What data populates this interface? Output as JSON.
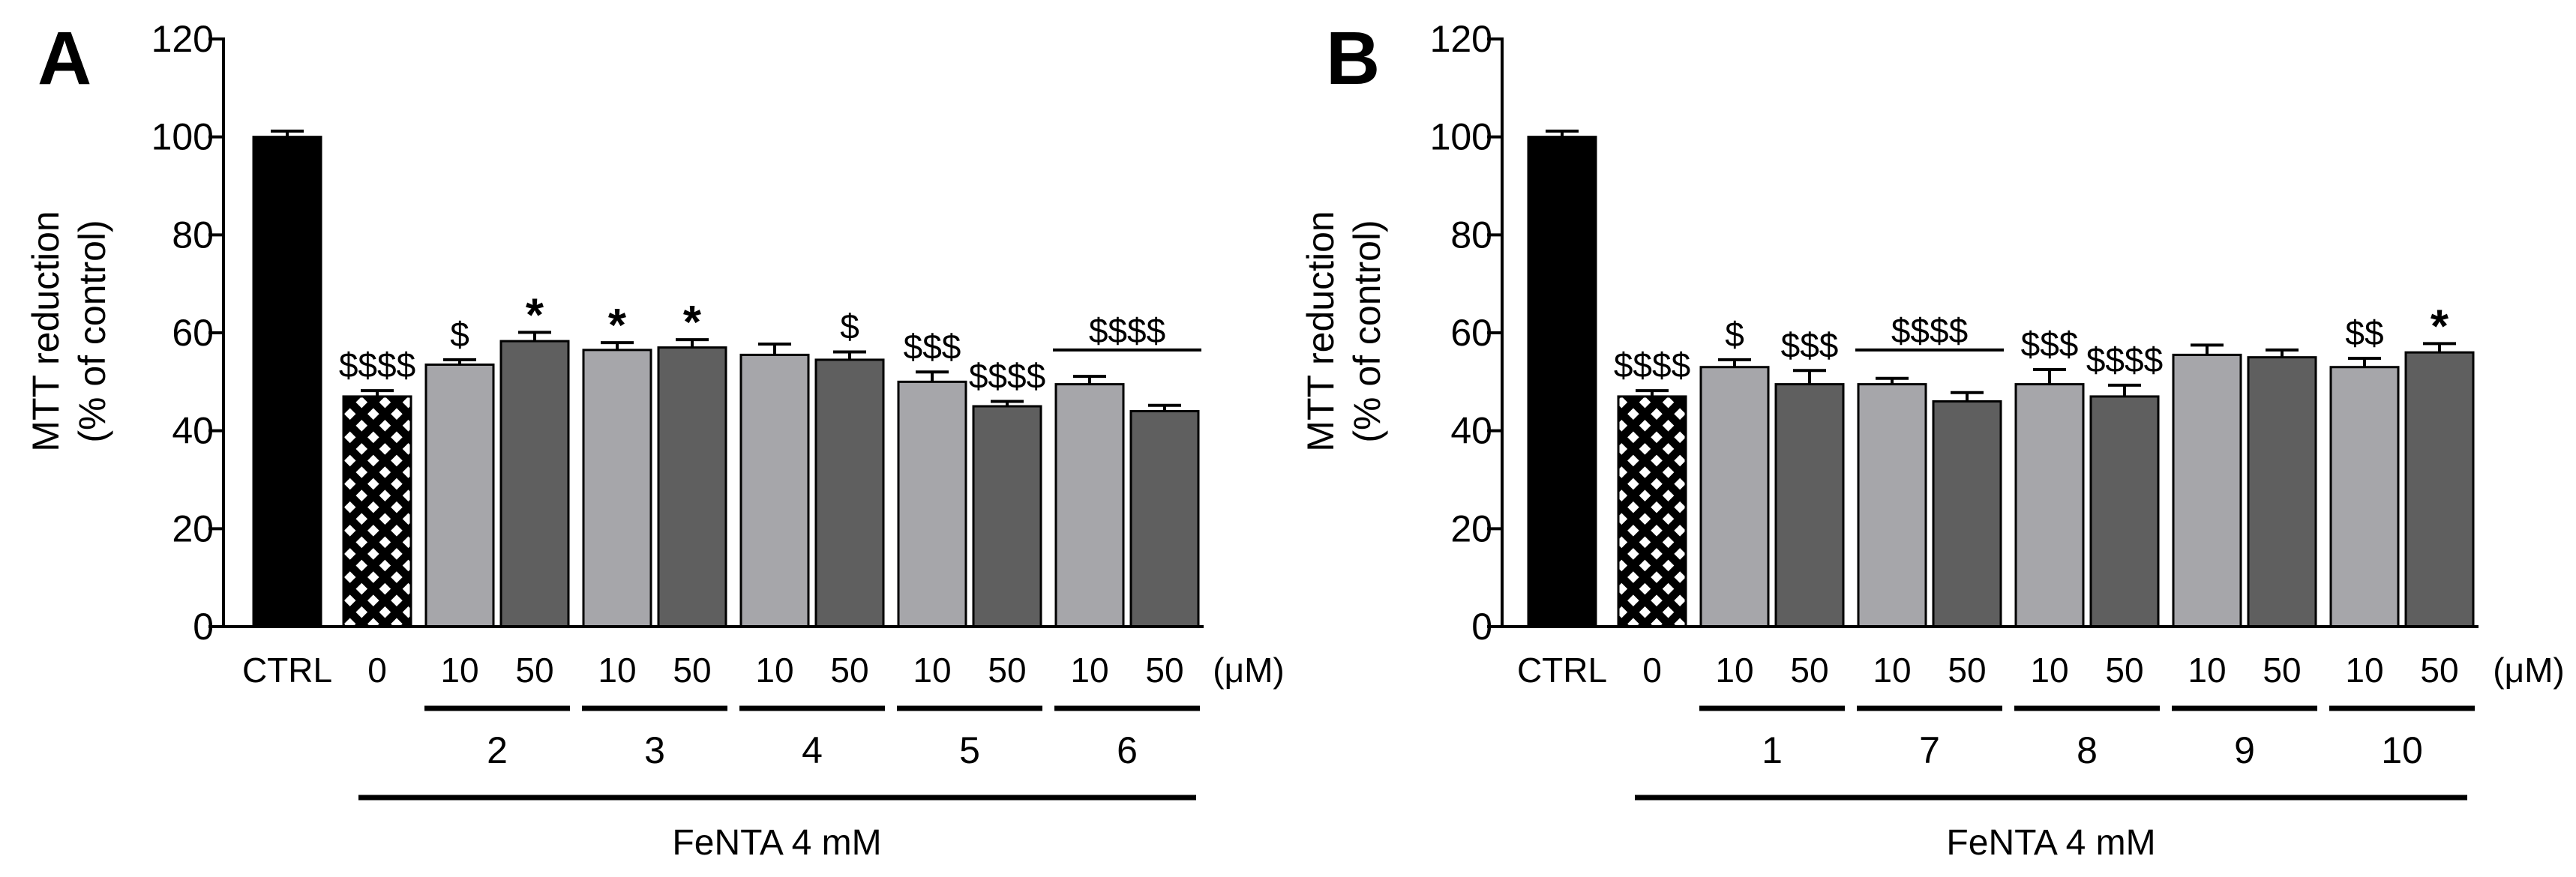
{
  "colors": {
    "ctrl": "#000000",
    "hatch_fg": "#000000",
    "hatch_bg": "#ffffff",
    "low_dose": "#a6a6aa",
    "high_dose": "#5f5f5f",
    "axis": "#000000"
  },
  "chart_data": [
    {
      "type": "bar",
      "panel_label": "A",
      "ylabel_line1": "MTT reduction",
      "ylabel_line2": "(% of control)",
      "ylim": [
        0,
        120
      ],
      "yticks": [
        0,
        20,
        40,
        60,
        80,
        100,
        120
      ],
      "unit_label": "(μM)",
      "group_caption": "FeNTA 4 mM",
      "bars": [
        {
          "x_label": "CTRL",
          "value": 100,
          "err": 1.2,
          "style": "ctrl",
          "annotation": ""
        },
        {
          "x_label": "0",
          "value": 47,
          "err": 1.2,
          "style": "hatch",
          "annotation": "$$$$"
        },
        {
          "x_label": "10",
          "value": 53.5,
          "err": 1.0,
          "style": "low",
          "annotation": "$"
        },
        {
          "x_label": "50",
          "value": 58.3,
          "err": 1.8,
          "style": "high",
          "annotation": "*"
        },
        {
          "x_label": "10",
          "value": 56.5,
          "err": 1.5,
          "style": "low",
          "annotation": "*"
        },
        {
          "x_label": "50",
          "value": 57,
          "err": 1.6,
          "style": "high",
          "annotation": "*"
        },
        {
          "x_label": "10",
          "value": 55.5,
          "err": 2.2,
          "style": "low",
          "annotation": ""
        },
        {
          "x_label": "50",
          "value": 54.5,
          "err": 1.6,
          "style": "high",
          "annotation": "$"
        },
        {
          "x_label": "10",
          "value": 50,
          "err": 2.0,
          "style": "low",
          "annotation": "$$$"
        },
        {
          "x_label": "50",
          "value": 45,
          "err": 1.0,
          "style": "high",
          "annotation": "$$$$"
        },
        {
          "x_label": "10",
          "value": 49.5,
          "err": 1.6,
          "style": "low",
          "annotation": ""
        },
        {
          "x_label": "50",
          "value": 44,
          "err": 1.2,
          "style": "high",
          "annotation": ""
        }
      ],
      "compounds": [
        {
          "label": "2",
          "bars": [
            2,
            3
          ]
        },
        {
          "label": "3",
          "bars": [
            4,
            5
          ]
        },
        {
          "label": "4",
          "bars": [
            6,
            7
          ]
        },
        {
          "label": "5",
          "bars": [
            8,
            9
          ]
        },
        {
          "label": "6",
          "bars": [
            10,
            11
          ]
        }
      ],
      "bracket_annotations": [
        {
          "text": "$$$$",
          "bars": [
            10,
            11
          ],
          "value": 56.5
        }
      ]
    },
    {
      "type": "bar",
      "panel_label": "B",
      "ylabel_line1": "MTT reduction",
      "ylabel_line2": "(% of control)",
      "ylim": [
        0,
        120
      ],
      "yticks": [
        0,
        20,
        40,
        60,
        80,
        100,
        120
      ],
      "unit_label": "(μM)",
      "group_caption": "FeNTA 4 mM",
      "bars": [
        {
          "x_label": "CTRL",
          "value": 100,
          "err": 1.2,
          "style": "ctrl",
          "annotation": ""
        },
        {
          "x_label": "0",
          "value": 47,
          "err": 1.2,
          "style": "hatch",
          "annotation": "$$$$"
        },
        {
          "x_label": "10",
          "value": 53,
          "err": 1.5,
          "style": "low",
          "annotation": "$"
        },
        {
          "x_label": "50",
          "value": 49.5,
          "err": 2.8,
          "style": "high",
          "annotation": "$$$"
        },
        {
          "x_label": "10",
          "value": 49.5,
          "err": 1.2,
          "style": "low",
          "annotation": ""
        },
        {
          "x_label": "50",
          "value": 46,
          "err": 1.8,
          "style": "high",
          "annotation": ""
        },
        {
          "x_label": "10",
          "value": 49.5,
          "err": 3.0,
          "style": "low",
          "annotation": "$$$"
        },
        {
          "x_label": "50",
          "value": 47,
          "err": 2.3,
          "style": "high",
          "annotation": "$$$$"
        },
        {
          "x_label": "10",
          "value": 55.5,
          "err": 2.0,
          "style": "low",
          "annotation": ""
        },
        {
          "x_label": "50",
          "value": 55,
          "err": 1.5,
          "style": "high",
          "annotation": ""
        },
        {
          "x_label": "10",
          "value": 53,
          "err": 1.8,
          "style": "low",
          "annotation": "$$"
        },
        {
          "x_label": "50",
          "value": 56,
          "err": 1.8,
          "style": "high",
          "annotation": "*"
        }
      ],
      "compounds": [
        {
          "label": "1",
          "bars": [
            2,
            3
          ]
        },
        {
          "label": "7",
          "bars": [
            4,
            5
          ]
        },
        {
          "label": "8",
          "bars": [
            6,
            7
          ]
        },
        {
          "label": "9",
          "bars": [
            8,
            9
          ]
        },
        {
          "label": "10",
          "bars": [
            10,
            11
          ]
        }
      ],
      "bracket_annotations": [
        {
          "text": "$$$$",
          "bars": [
            4,
            5
          ],
          "value": 56.5
        }
      ]
    }
  ]
}
